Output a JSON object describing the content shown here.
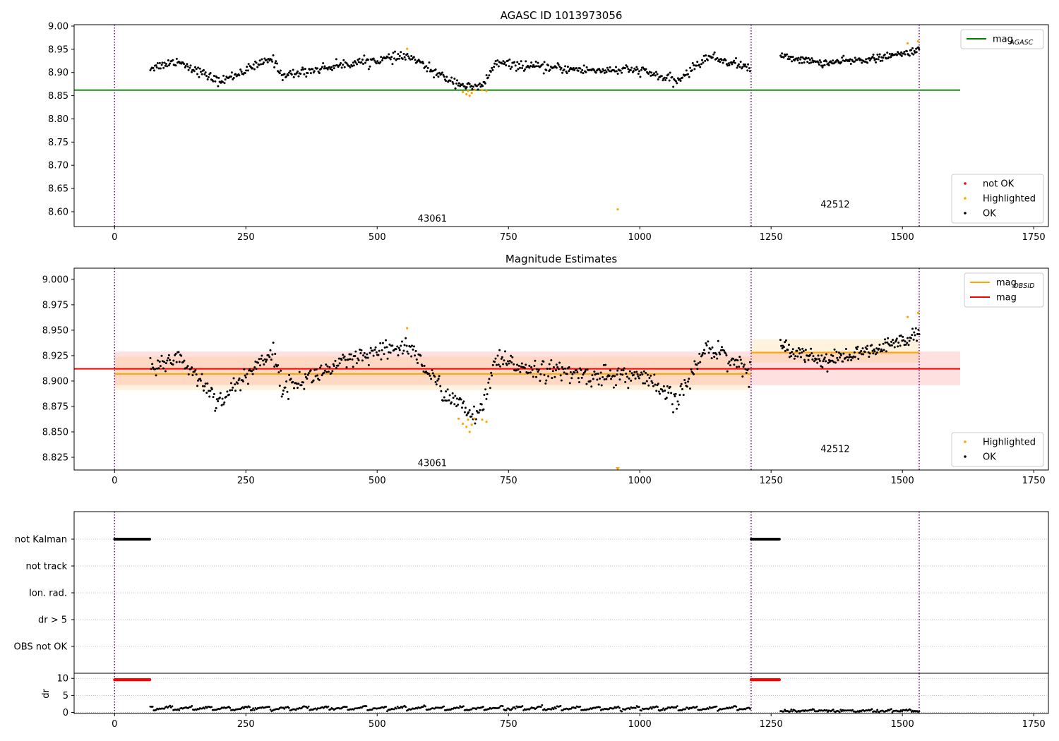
{
  "colors": {
    "ok": "#000000",
    "highlighted": "#ffa500",
    "not_ok": "#ff0000",
    "mag_agasc": "#008000",
    "mag_obsid": "#ffa500",
    "mag": "#ff0000",
    "obs_boundary": "#800080"
  },
  "chart_data": [
    {
      "type": "scatter",
      "title": "AGASC ID 1013973056",
      "xlabel": "",
      "ylabel": "",
      "xlim": [
        -77,
        1778
      ],
      "ylim": [
        8.568,
        9.003
      ],
      "xticks": [
        0,
        250,
        500,
        750,
        1000,
        1250,
        1500,
        1750
      ],
      "yticks": [
        8.6,
        8.65,
        8.7,
        8.75,
        8.8,
        8.85,
        8.9,
        8.95,
        9.0
      ],
      "ytick_labels": [
        "8.60",
        "8.65",
        "8.70",
        "8.75",
        "8.80",
        "8.85",
        "8.90",
        "8.95",
        "9.00"
      ],
      "grid": false,
      "obs_boundaries": [
        0,
        1212,
        1532
      ],
      "obs_labels": [
        {
          "text": "43061",
          "x": 605,
          "y": 8.585
        },
        {
          "text": "42512",
          "x": 1372,
          "y": 8.615
        }
      ],
      "lines": [
        {
          "name": "mag",
          "sub": "AGASC",
          "x": [
            -77,
            1610
          ],
          "y": 8.862
        }
      ],
      "legends": [
        {
          "loc": "upper-right",
          "entries": [
            {
              "name": "mag",
              "sub": "AGASC",
              "kind": "line",
              "color": "#008000"
            }
          ]
        },
        {
          "loc": "lower-right",
          "entries": [
            {
              "name": "not OK",
              "kind": "dot",
              "color": "#ff0000"
            },
            {
              "name": "Highlighted",
              "kind": "dot",
              "color": "#ffa500"
            },
            {
              "name": "OK",
              "kind": "dot",
              "color": "#000000"
            }
          ]
        }
      ],
      "series": [
        {
          "name": "OK",
          "segments": [
            {
              "x_start": 68,
              "x_end": 1210,
              "n": 640,
              "knots": [
                [
                  68,
                  8.91
                ],
                [
                  120,
                  8.925
                ],
                [
                  200,
                  8.88
                ],
                [
                  300,
                  8.93
                ],
                [
                  320,
                  8.893
                ],
                [
                  400,
                  8.91
                ],
                [
                  450,
                  8.92
                ],
                [
                  560,
                  8.935
                ],
                [
                  620,
                  8.893
                ],
                [
                  680,
                  8.866
                ],
                [
                  700,
                  8.87
                ],
                [
                  725,
                  8.92
                ],
                [
                  800,
                  8.912
                ],
                [
                  900,
                  8.905
                ],
                [
                  1000,
                  8.905
                ],
                [
                  1070,
                  8.88
                ],
                [
                  1130,
                  8.935
                ],
                [
                  1210,
                  8.91
                ]
              ],
              "noise": 0.009
            },
            {
              "x_start": 1268,
              "x_end": 1532,
              "n": 170,
              "knots": [
                [
                  1268,
                  8.935
                ],
                [
                  1350,
                  8.92
                ],
                [
                  1450,
                  8.93
                ],
                [
                  1500,
                  8.94
                ],
                [
                  1532,
                  8.95
                ]
              ],
              "noise": 0.007
            }
          ]
        },
        {
          "name": "Highlighted",
          "points": [
            [
              557,
              8.951
            ],
            [
              663,
              8.858
            ],
            [
              670,
              8.853
            ],
            [
              673,
              8.86
            ],
            [
              676,
              8.85
            ],
            [
              680,
              8.856
            ],
            [
              685,
              8.862
            ],
            [
              700,
              8.862
            ],
            [
              708,
              8.86
            ],
            [
              958,
              8.605
            ],
            [
              1510,
              8.963
            ],
            [
              1530,
              8.967
            ]
          ]
        }
      ]
    },
    {
      "type": "scatter",
      "title": "Magnitude Estimates",
      "xlabel": "",
      "ylabel": "",
      "xlim": [
        -77,
        1778
      ],
      "ylim": [
        8.8125,
        9.011
      ],
      "xticks": [
        0,
        250,
        500,
        750,
        1000,
        1250,
        1500,
        1750
      ],
      "yticks": [
        8.825,
        8.85,
        8.875,
        8.9,
        8.925,
        8.95,
        8.975,
        9.0
      ],
      "ytick_labels": [
        "8.825",
        "8.850",
        "8.875",
        "8.900",
        "8.925",
        "8.950",
        "8.975",
        "9.000"
      ],
      "grid": false,
      "obs_boundaries": [
        0,
        1212,
        1532
      ],
      "obs_labels": [
        {
          "text": "43061",
          "x": 605,
          "y": 8.819
        },
        {
          "text": "42512",
          "x": 1372,
          "y": 8.833
        }
      ],
      "bands": [
        {
          "name": "mag",
          "x": [
            0,
            1610
          ],
          "y": [
            8.896,
            8.929
          ],
          "color": "#ff0000",
          "opacity": 0.12
        },
        {
          "name": "mag OBSID 43061",
          "x": [
            0,
            1212
          ],
          "y": [
            8.891,
            8.924
          ],
          "color": "#ffa500",
          "opacity": 0.13
        },
        {
          "name": "mag OBSID 42512",
          "x": [
            1212,
            1532
          ],
          "y": [
            8.918,
            8.941
          ],
          "color": "#ffa500",
          "opacity": 0.13
        }
      ],
      "lines": [
        {
          "name": "mag",
          "sub": "OBSID",
          "x": [
            0,
            1212
          ],
          "y": 8.907,
          "color": "#ffa500"
        },
        {
          "name": "mag",
          "sub": "OBSID",
          "x": [
            1212,
            1532
          ],
          "y": 8.928,
          "color": "#ffa500"
        },
        {
          "name": "mag",
          "x": [
            -77,
            1610
          ],
          "y": 8.912,
          "color": "#ff0000"
        }
      ],
      "legends": [
        {
          "loc": "upper-right",
          "entries": [
            {
              "name": "mag",
              "sub": "OBSID",
              "kind": "line",
              "color": "#ffa500"
            },
            {
              "name": "mag",
              "kind": "line",
              "color": "#ff0000"
            }
          ]
        },
        {
          "loc": "lower-right",
          "entries": [
            {
              "name": "Highlighted",
              "kind": "dot",
              "color": "#ffa500"
            },
            {
              "name": "OK",
              "kind": "dot",
              "color": "#000000"
            }
          ]
        }
      ],
      "series": [
        {
          "name": "OK",
          "segments": [
            {
              "x_start": 68,
              "x_end": 1210,
              "n": 640,
              "knots": [
                [
                  68,
                  8.91
                ],
                [
                  120,
                  8.925
                ],
                [
                  200,
                  8.88
                ],
                [
                  300,
                  8.93
                ],
                [
                  320,
                  8.893
                ],
                [
                  400,
                  8.91
                ],
                [
                  450,
                  8.92
                ],
                [
                  560,
                  8.935
                ],
                [
                  620,
                  8.893
                ],
                [
                  680,
                  8.866
                ],
                [
                  700,
                  8.87
                ],
                [
                  725,
                  8.92
                ],
                [
                  800,
                  8.912
                ],
                [
                  900,
                  8.905
                ],
                [
                  1000,
                  8.905
                ],
                [
                  1070,
                  8.88
                ],
                [
                  1130,
                  8.935
                ],
                [
                  1210,
                  8.91
                ]
              ],
              "noise": 0.009
            },
            {
              "x_start": 1268,
              "x_end": 1532,
              "n": 170,
              "knots": [
                [
                  1268,
                  8.935
                ],
                [
                  1350,
                  8.92
                ],
                [
                  1450,
                  8.93
                ],
                [
                  1500,
                  8.94
                ],
                [
                  1532,
                  8.95
                ]
              ],
              "noise": 0.007
            }
          ]
        },
        {
          "name": "Highlighted",
          "points": [
            [
              557,
              8.952
            ],
            [
              655,
              8.863
            ],
            [
              663,
              8.858
            ],
            [
              670,
              8.855
            ],
            [
              673,
              8.862
            ],
            [
              676,
              8.85
            ],
            [
              680,
              8.857
            ],
            [
              685,
              8.863
            ],
            [
              700,
              8.862
            ],
            [
              708,
              8.86
            ],
            [
              1510,
              8.963
            ],
            [
              1530,
              8.967
            ]
          ],
          "offscale": [
            [
              958,
              8.814
            ]
          ]
        }
      ]
    },
    {
      "type": "scatter",
      "title": "",
      "xlabel": "",
      "ylabel": "",
      "xlim": [
        -77,
        1778
      ],
      "categories": [
        "not Kalman",
        "not track",
        "Ion. rad.",
        "dr > 5",
        "OBS not OK"
      ],
      "grid": true,
      "obs_boundaries": [
        0,
        1212,
        1532
      ],
      "series": [
        {
          "name": "not Kalman",
          "ranges": [
            [
              0,
              68
            ],
            [
              1212,
              1266
            ]
          ]
        },
        {
          "name": "not track",
          "ranges": []
        },
        {
          "name": "Ion. rad.",
          "ranges": []
        },
        {
          "name": "dr > 5",
          "ranges": []
        },
        {
          "name": "OBS not OK",
          "ranges": []
        }
      ]
    },
    {
      "type": "scatter",
      "title": "",
      "xlabel": "",
      "ylabel": "dr",
      "xlim": [
        -77,
        1778
      ],
      "ylim": [
        -0.3,
        11.5
      ],
      "xticks": [
        0,
        250,
        500,
        750,
        1000,
        1250,
        1500,
        1750
      ],
      "yticks": [
        0,
        5,
        10
      ],
      "ytick_labels": [
        "0",
        "5",
        "10"
      ],
      "grid": true,
      "obs_boundaries": [
        0,
        1212,
        1532
      ],
      "series": [
        {
          "name": "dr > 5",
          "ranges": [
            [
              0,
              68
            ],
            [
              1212,
              1266
            ]
          ],
          "y": 9.6,
          "color": "#ff0000"
        },
        {
          "name": "dr",
          "segments": [
            {
              "x_start": 68,
              "x_end": 1210,
              "n": 520,
              "base": 1.2,
              "amp": 1.1
            },
            {
              "x_start": 1268,
              "x_end": 1532,
              "n": 130,
              "base": 0.45,
              "amp": 0.5
            }
          ]
        }
      ]
    }
  ]
}
